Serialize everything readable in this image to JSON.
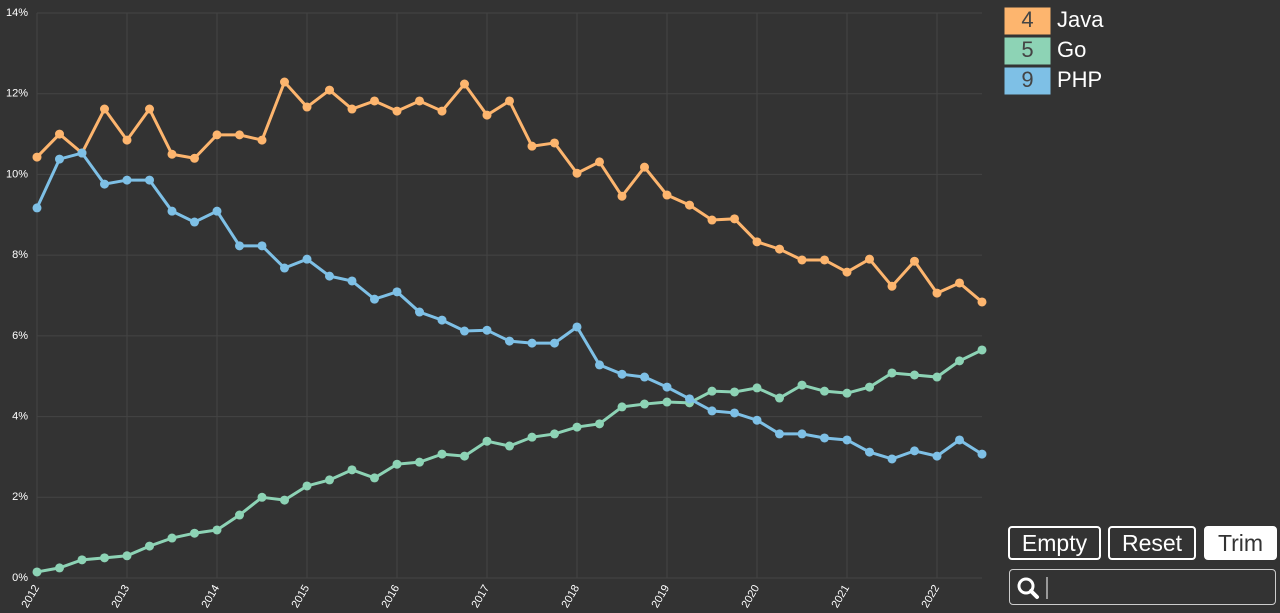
{
  "chart_data": {
    "type": "line",
    "x": [
      2012,
      2012.25,
      2012.5,
      2012.75,
      2013,
      2013.25,
      2013.5,
      2013.75,
      2014,
      2014.25,
      2014.5,
      2014.75,
      2015,
      2015.25,
      2015.5,
      2015.75,
      2016,
      2016.25,
      2016.5,
      2016.75,
      2017,
      2017.25,
      2017.5,
      2017.75,
      2018,
      2018.25,
      2018.5,
      2018.75,
      2019,
      2019.25,
      2019.5,
      2019.75,
      2020,
      2020.25,
      2020.5,
      2020.75,
      2021,
      2021.25,
      2021.5,
      2021.75,
      2022,
      2022.25,
      2022.5
    ],
    "series": [
      {
        "rank": "4",
        "name": "Java",
        "color": "#fdb56e",
        "values": [
          10.43,
          11.0,
          10.53,
          11.62,
          10.85,
          11.62,
          10.5,
          10.4,
          10.98,
          10.98,
          10.85,
          12.29,
          11.67,
          12.09,
          11.62,
          11.82,
          11.57,
          11.82,
          11.57,
          12.24,
          11.47,
          11.82,
          10.7,
          10.78,
          10.03,
          10.31,
          9.46,
          10.18,
          9.49,
          9.24,
          8.87,
          8.9,
          8.33,
          8.15,
          7.88,
          7.88,
          7.58,
          7.9,
          7.23,
          7.85,
          7.06,
          7.31,
          6.84
        ]
      },
      {
        "rank": "5",
        "name": "Go",
        "color": "#8dd3b5",
        "values": [
          0.15,
          0.25,
          0.45,
          0.5,
          0.55,
          0.79,
          0.99,
          1.11,
          1.19,
          1.56,
          2.0,
          1.93,
          2.28,
          2.43,
          2.68,
          2.48,
          2.82,
          2.87,
          3.07,
          3.02,
          3.39,
          3.27,
          3.49,
          3.57,
          3.74,
          3.82,
          4.24,
          4.31,
          4.36,
          4.34,
          4.63,
          4.61,
          4.71,
          4.46,
          4.78,
          4.63,
          4.58,
          4.73,
          5.08,
          5.03,
          4.98,
          5.38,
          5.65
        ]
      },
      {
        "rank": "9",
        "name": "PHP",
        "color": "#7ec0e6",
        "values": [
          9.17,
          10.38,
          10.53,
          9.76,
          9.86,
          9.86,
          9.09,
          8.82,
          9.09,
          8.23,
          8.23,
          7.68,
          7.9,
          7.48,
          7.36,
          6.91,
          7.09,
          6.59,
          6.39,
          6.12,
          6.14,
          5.87,
          5.82,
          5.82,
          6.22,
          5.28,
          5.05,
          4.98,
          4.73,
          4.44,
          4.14,
          4.09,
          3.91,
          3.57,
          3.57,
          3.47,
          3.42,
          3.12,
          2.95,
          3.15,
          3.02,
          3.42,
          3.07
        ]
      }
    ],
    "xlim": [
      2012,
      2022.5
    ],
    "xticks": [
      2012,
      2013,
      2014,
      2015,
      2016,
      2017,
      2018,
      2019,
      2020,
      2021,
      2022
    ],
    "ylim": [
      0,
      14
    ],
    "yticks": [
      {
        "value": 0,
        "label": "0%"
      },
      {
        "value": 2,
        "label": "2%"
      },
      {
        "value": 4,
        "label": "4%"
      },
      {
        "value": 6,
        "label": "6%"
      },
      {
        "value": 8,
        "label": "8%"
      },
      {
        "value": 10,
        "label": "10%"
      },
      {
        "value": 12,
        "label": "12%"
      },
      {
        "value": 14,
        "label": "14%"
      }
    ],
    "grid": true
  },
  "controls": {
    "buttons": [
      "Empty",
      "Reset",
      "Trim"
    ]
  }
}
